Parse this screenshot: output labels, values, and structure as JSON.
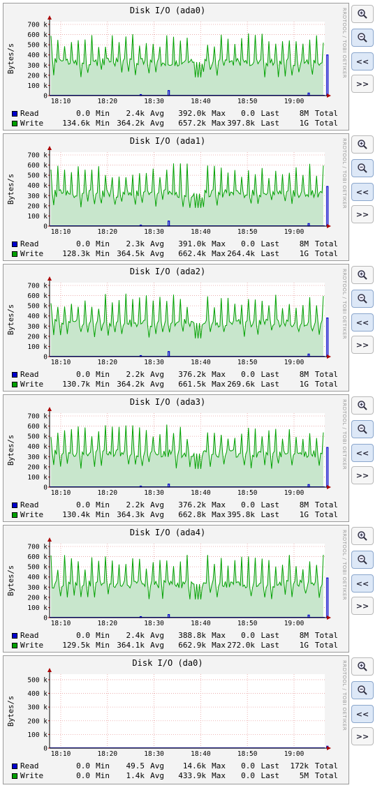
{
  "watermark": "RRDTOOL / TOBI OETIKER",
  "colors": {
    "read": "#0000cc",
    "write": "#00a000",
    "write_area": "#c8e6cc"
  },
  "controls": [
    {
      "name": "zoom-in-button",
      "icon": "zoom-in-icon"
    },
    {
      "name": "zoom-out-button",
      "icon": "zoom-out-icon",
      "label": ""
    },
    {
      "name": "prev-button",
      "label": "<<"
    },
    {
      "name": "next-button",
      "label": ">>"
    }
  ],
  "charts": [
    {
      "id": "ada0",
      "title": "Disk I/O (ada0)",
      "legend": [
        {
          "name": "Read",
          "min_label": "Min",
          "avg_label": "Avg",
          "max_label": "Max",
          "last_label": "Last",
          "total_label": "Total",
          "cur": "0.0",
          "min": "2.4k",
          "avg": "392.0k",
          "max": "0.0",
          "last": "8M",
          "total": ""
        },
        {
          "name": "Write",
          "min_label": "Min",
          "avg_label": "Avg",
          "max_label": "Max",
          "last_label": "Last",
          "total_label": "Total",
          "cur": "134.6k",
          "min": "364.2k",
          "avg": "657.2k",
          "max": "397.8k",
          "last": "1G",
          "total": ""
        }
      ]
    },
    {
      "id": "ada1",
      "title": "Disk I/O (ada1)",
      "legend": [
        {
          "name": "Read",
          "min_label": "Min",
          "avg_label": "Avg",
          "max_label": "Max",
          "last_label": "Last",
          "total_label": "Total",
          "cur": "0.0",
          "min": "2.3k",
          "avg": "391.0k",
          "max": "0.0",
          "last": "8M",
          "total": ""
        },
        {
          "name": "Write",
          "min_label": "Min",
          "avg_label": "Avg",
          "max_label": "Max",
          "last_label": "Last",
          "total_label": "Total",
          "cur": "128.3k",
          "min": "364.5k",
          "avg": "662.4k",
          "max": "264.4k",
          "last": "1G",
          "total": ""
        }
      ]
    },
    {
      "id": "ada2",
      "title": "Disk I/O (ada2)",
      "legend": [
        {
          "name": "Read",
          "min_label": "Min",
          "avg_label": "Avg",
          "max_label": "Max",
          "last_label": "Last",
          "total_label": "Total",
          "cur": "0.0",
          "min": "2.2k",
          "avg": "376.2k",
          "max": "0.0",
          "last": "8M",
          "total": ""
        },
        {
          "name": "Write",
          "min_label": "Min",
          "avg_label": "Avg",
          "max_label": "Max",
          "last_label": "Last",
          "total_label": "Total",
          "cur": "130.7k",
          "min": "364.2k",
          "avg": "661.5k",
          "max": "269.6k",
          "last": "1G",
          "total": ""
        }
      ]
    },
    {
      "id": "ada3",
      "title": "Disk I/O (ada3)",
      "legend": [
        {
          "name": "Read",
          "min_label": "Min",
          "avg_label": "Avg",
          "max_label": "Max",
          "last_label": "Last",
          "total_label": "Total",
          "cur": "0.0",
          "min": "2.2k",
          "avg": "376.2k",
          "max": "0.0",
          "last": "8M",
          "total": ""
        },
        {
          "name": "Write",
          "min_label": "Min",
          "avg_label": "Avg",
          "max_label": "Max",
          "last_label": "Last",
          "total_label": "Total",
          "cur": "130.4k",
          "min": "364.3k",
          "avg": "662.8k",
          "max": "395.8k",
          "last": "1G",
          "total": ""
        }
      ]
    },
    {
      "id": "ada4",
      "title": "Disk I/O (ada4)",
      "legend": [
        {
          "name": "Read",
          "min_label": "Min",
          "avg_label": "Avg",
          "max_label": "Max",
          "last_label": "Last",
          "total_label": "Total",
          "cur": "0.0",
          "min": "2.4k",
          "avg": "388.8k",
          "max": "0.0",
          "last": "8M",
          "total": ""
        },
        {
          "name": "Write",
          "min_label": "Min",
          "avg_label": "Avg",
          "max_label": "Max",
          "last_label": "Last",
          "total_label": "Total",
          "cur": "129.5k",
          "min": "364.1k",
          "avg": "662.9k",
          "max": "272.0k",
          "last": "1G",
          "total": ""
        }
      ]
    },
    {
      "id": "da0",
      "title": "Disk I/O (da0)",
      "legend": [
        {
          "name": "Read",
          "min_label": "Min",
          "avg_label": "Avg",
          "max_label": "Max",
          "last_label": "Last",
          "total_label": "Total",
          "cur": "0.0",
          "min": "49.5",
          "avg": "14.6k",
          "max": "0.0",
          "last": "172k",
          "total": ""
        },
        {
          "name": "Write",
          "min_label": "Min",
          "avg_label": "Avg",
          "max_label": "Max",
          "last_label": "Last",
          "total_label": "Total",
          "cur": "0.0",
          "min": "1.4k",
          "avg": "433.9k",
          "max": "0.0",
          "last": "5M",
          "total": ""
        }
      ]
    }
  ],
  "chart_data": [
    {
      "type": "area",
      "title": "Disk I/O (ada0)",
      "ylabel": "Bytes/s",
      "xlabel": "",
      "x_ticks": [
        "18:10",
        "18:20",
        "18:30",
        "18:40",
        "18:50",
        "19:00"
      ],
      "y_ticks": [
        "0",
        "100 k",
        "200 k",
        "300 k",
        "400 k",
        "500 k",
        "600 k",
        "700 k"
      ],
      "ylim": [
        0,
        700000
      ],
      "grid": true,
      "series": [
        {
          "name": "Read",
          "color": "#0000cc",
          "peaks": [
            [
              18.27,
              10000
            ],
            [
              18.33,
              50000
            ],
            [
              18.63,
              25000
            ],
            [
              18.67,
              400000
            ]
          ]
        },
        {
          "name": "Write",
          "color": "#00a000",
          "baseline": 330000,
          "spike_high": 620000,
          "spike_low": 180000
        }
      ]
    },
    {
      "type": "area",
      "title": "Disk I/O (ada1)",
      "ylabel": "Bytes/s",
      "xlabel": "",
      "x_ticks": [
        "18:10",
        "18:20",
        "18:30",
        "18:40",
        "18:50",
        "19:00"
      ],
      "y_ticks": [
        "0",
        "100 k",
        "200 k",
        "300 k",
        "400 k",
        "500 k",
        "600 k",
        "700 k"
      ],
      "ylim": [
        0,
        700000
      ],
      "grid": true,
      "series": [
        {
          "name": "Read",
          "color": "#0000cc",
          "peaks": [
            [
              18.27,
              10000
            ],
            [
              18.33,
              50000
            ],
            [
              18.63,
              25000
            ],
            [
              18.67,
              390000
            ]
          ]
        },
        {
          "name": "Write",
          "color": "#00a000",
          "baseline": 320000,
          "spike_high": 620000,
          "spike_low": 180000
        }
      ]
    },
    {
      "type": "area",
      "title": "Disk I/O (ada2)",
      "ylabel": "Bytes/s",
      "xlabel": "",
      "x_ticks": [
        "18:10",
        "18:20",
        "18:30",
        "18:40",
        "18:50",
        "19:00"
      ],
      "y_ticks": [
        "0",
        "100 k",
        "200 k",
        "300 k",
        "400 k",
        "500 k",
        "600 k",
        "700 k"
      ],
      "ylim": [
        0,
        700000
      ],
      "grid": true,
      "series": [
        {
          "name": "Read",
          "color": "#0000cc",
          "peaks": [
            [
              18.27,
              10000
            ],
            [
              18.33,
              50000
            ],
            [
              18.63,
              25000
            ],
            [
              18.67,
              380000
            ]
          ]
        },
        {
          "name": "Write",
          "color": "#00a000",
          "baseline": 330000,
          "spike_high": 620000,
          "spike_low": 180000
        }
      ]
    },
    {
      "type": "area",
      "title": "Disk I/O (ada3)",
      "ylabel": "Bytes/s",
      "xlabel": "",
      "x_ticks": [
        "18:10",
        "18:20",
        "18:30",
        "18:40",
        "18:50",
        "19:00"
      ],
      "y_ticks": [
        "0",
        "100 k",
        "200 k",
        "300 k",
        "400 k",
        "500 k",
        "600 k",
        "700 k"
      ],
      "ylim": [
        0,
        700000
      ],
      "grid": true,
      "series": [
        {
          "name": "Read",
          "color": "#0000cc",
          "peaks": [
            [
              18.27,
              10000
            ],
            [
              18.33,
              30000
            ],
            [
              18.63,
              25000
            ],
            [
              18.67,
              390000
            ]
          ]
        },
        {
          "name": "Write",
          "color": "#00a000",
          "baseline": 330000,
          "spike_high": 620000,
          "spike_low": 180000
        }
      ]
    },
    {
      "type": "area",
      "title": "Disk I/O (ada4)",
      "ylabel": "Bytes/s",
      "xlabel": "",
      "x_ticks": [
        "18:10",
        "18:20",
        "18:30",
        "18:40",
        "18:50",
        "19:00"
      ],
      "y_ticks": [
        "0",
        "100 k",
        "200 k",
        "300 k",
        "400 k",
        "500 k",
        "600 k",
        "700 k"
      ],
      "ylim": [
        0,
        700000
      ],
      "grid": true,
      "series": [
        {
          "name": "Read",
          "color": "#0000cc",
          "peaks": [
            [
              18.27,
              10000
            ],
            [
              18.33,
              30000
            ],
            [
              18.63,
              25000
            ],
            [
              18.67,
              390000
            ]
          ]
        },
        {
          "name": "Write",
          "color": "#00a000",
          "baseline": 330000,
          "spike_high": 620000,
          "spike_low": 180000
        }
      ]
    },
    {
      "type": "area",
      "title": "Disk I/O (da0)",
      "ylabel": "Bytes/s",
      "xlabel": "",
      "x_ticks": [
        "18:10",
        "18:20",
        "18:30",
        "18:40",
        "18:50",
        "19:00"
      ],
      "y_ticks": [
        "0",
        "100 k",
        "200 k",
        "300 k",
        "400 k",
        "500 k"
      ],
      "ylim": [
        0,
        520000
      ],
      "grid": true,
      "series": [
        {
          "name": "Read",
          "color": "#0000cc",
          "peaks": [
            [
              18.67,
              14000
            ]
          ]
        },
        {
          "name": "Write",
          "color": "#00a000",
          "peaks": [
            [
              19.02,
              433900
            ],
            [
              19.03,
              50000
            ]
          ]
        }
      ]
    }
  ]
}
